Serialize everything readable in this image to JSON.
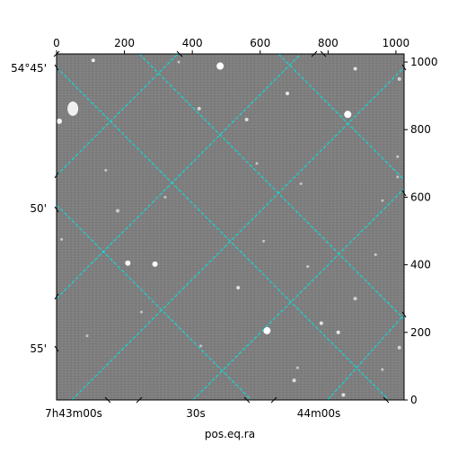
{
  "figure": {
    "xlabel": "pos.eq.ra",
    "colors": {
      "background": "#808080",
      "grid": "#00e5e5",
      "frame": "#000000"
    }
  },
  "pixel_axes": {
    "top_ticks": [
      "0",
      "200",
      "400",
      "600",
      "800",
      "1000"
    ],
    "right_ticks": [
      "0",
      "200",
      "400",
      "600",
      "800",
      "1000"
    ],
    "range": [
      0,
      1024
    ]
  },
  "world_axes": {
    "ra_ticks": [
      "7h43m00s",
      "30s",
      "44m00s"
    ],
    "dec_ticks": [
      "54°45'",
      "50'",
      "55'"
    ]
  },
  "stars": [
    {
      "x": 48,
      "y": 862,
      "r": 5,
      "b": 1.0
    },
    {
      "x": 482,
      "y": 988,
      "r": 4,
      "b": 1.0
    },
    {
      "x": 858,
      "y": 845,
      "r": 4,
      "b": 1.0
    },
    {
      "x": 620,
      "y": 205,
      "r": 4,
      "b": 1.0
    },
    {
      "x": 290,
      "y": 402,
      "r": 3,
      "b": 0.95
    },
    {
      "x": 210,
      "y": 405,
      "r": 3,
      "b": 0.9
    },
    {
      "x": 108,
      "y": 1005,
      "r": 2,
      "b": 0.8
    },
    {
      "x": 680,
      "y": 907,
      "r": 2,
      "b": 0.8
    },
    {
      "x": 560,
      "y": 830,
      "r": 2,
      "b": 0.7
    },
    {
      "x": 420,
      "y": 862,
      "r": 2,
      "b": 0.6
    },
    {
      "x": 880,
      "y": 980,
      "r": 2,
      "b": 0.7
    },
    {
      "x": 1010,
      "y": 950,
      "r": 2,
      "b": 0.6
    },
    {
      "x": 8,
      "y": 825,
      "r": 3,
      "b": 0.9
    },
    {
      "x": 535,
      "y": 332,
      "r": 2,
      "b": 0.7
    },
    {
      "x": 780,
      "y": 227,
      "r": 2,
      "b": 0.75
    },
    {
      "x": 830,
      "y": 200,
      "r": 2,
      "b": 0.8
    },
    {
      "x": 700,
      "y": 58,
      "r": 2,
      "b": 0.7
    },
    {
      "x": 180,
      "y": 560,
      "r": 2,
      "b": 0.5
    },
    {
      "x": 145,
      "y": 680,
      "r": 1.5,
      "b": 0.5
    },
    {
      "x": 320,
      "y": 600,
      "r": 1.5,
      "b": 0.45
    },
    {
      "x": 590,
      "y": 700,
      "r": 1.5,
      "b": 0.45
    },
    {
      "x": 940,
      "y": 430,
      "r": 1.5,
      "b": 0.5
    },
    {
      "x": 1010,
      "y": 155,
      "r": 2,
      "b": 0.6
    },
    {
      "x": 880,
      "y": 300,
      "r": 2,
      "b": 0.55
    },
    {
      "x": 740,
      "y": 395,
      "r": 1.5,
      "b": 0.5
    },
    {
      "x": 90,
      "y": 190,
      "r": 1.5,
      "b": 0.45
    },
    {
      "x": 250,
      "y": 260,
      "r": 1.5,
      "b": 0.45
    },
    {
      "x": 610,
      "y": 470,
      "r": 1.5,
      "b": 0.45
    },
    {
      "x": 960,
      "y": 90,
      "r": 1.5,
      "b": 0.5
    },
    {
      "x": 15,
      "y": 475,
      "r": 1.5,
      "b": 0.5
    },
    {
      "x": 425,
      "y": 160,
      "r": 1.5,
      "b": 0.45
    },
    {
      "x": 1005,
      "y": 720,
      "r": 1.5,
      "b": 0.5
    },
    {
      "x": 960,
      "y": 590,
      "r": 1.5,
      "b": 0.45
    },
    {
      "x": 360,
      "y": 1000,
      "r": 1.5,
      "b": 0.45
    },
    {
      "x": 1005,
      "y": 660,
      "r": 1.5,
      "b": 0.45
    },
    {
      "x": 720,
      "y": 640,
      "r": 1.5,
      "b": 0.45
    },
    {
      "x": 845,
      "y": 15,
      "r": 2,
      "b": 0.7
    },
    {
      "x": 710,
      "y": 95,
      "r": 1.5,
      "b": 0.45
    }
  ]
}
